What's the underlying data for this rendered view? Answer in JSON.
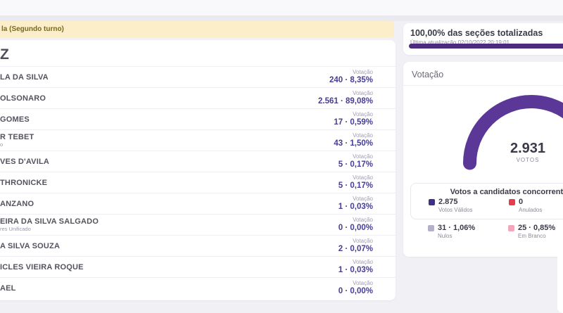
{
  "header": {
    "banner_text": "la (Segundo turno)",
    "section_heading": "Z"
  },
  "candidates": {
    "votacao_label": "Votação",
    "rows": [
      {
        "name": "LA DA SILVA",
        "sub": "",
        "votes": "240 · 8,35%"
      },
      {
        "name": "OLSONARO",
        "sub": "",
        "votes": "2.561 · 89,08%"
      },
      {
        "name": "GOMES",
        "sub": "",
        "votes": "17 · 0,59%"
      },
      {
        "name": "R TEBET",
        "sub": "o",
        "votes": "43 · 1,50%"
      },
      {
        "name": "VES D'AVILA",
        "sub": "",
        "votes": "5 · 0,17%"
      },
      {
        "name": "THRONICKE",
        "sub": "",
        "votes": "5 · 0,17%"
      },
      {
        "name": "ANZANO",
        "sub": "",
        "votes": "1 · 0,03%"
      },
      {
        "name": "EIRA DA SILVA SALGADO",
        "sub": "res Unificado",
        "votes": "0 · 0,00%"
      },
      {
        "name": "A SILVA SOUZA",
        "sub": "",
        "votes": "2 · 0,07%"
      },
      {
        "name": "ICLES VIEIRA ROQUE",
        "sub": "",
        "votes": "1 · 0,03%"
      },
      {
        "name": "AEL",
        "sub": "",
        "votes": "0 · 0,00%"
      }
    ]
  },
  "totalization_card": {
    "title": "100,00% das seções totalizadas",
    "subtitle": "Última atualização 02/10/2022 20:19:01",
    "progress_percent": 100,
    "bar_color": "#4a2b80"
  },
  "votacao_card": {
    "title": "Votação",
    "gauge": {
      "value": "2.931",
      "unit": "VOTOS",
      "color": "#5b3897"
    },
    "concurrent_title": "Votos a candidatos concorrentes",
    "legend_primary": [
      {
        "value": "2.875",
        "label": "Votos Válidos",
        "color": "#402e8a"
      },
      {
        "value": "0",
        "label": "Anulados",
        "color": "#e73b4e"
      }
    ],
    "legend_secondary": [
      {
        "value": "31 · 1,06%",
        "label": "Nulos",
        "color": "#b5afc7"
      },
      {
        "value": "25 · 0,85%",
        "label": "Em Branco",
        "color": "#f3a7bd"
      }
    ]
  }
}
